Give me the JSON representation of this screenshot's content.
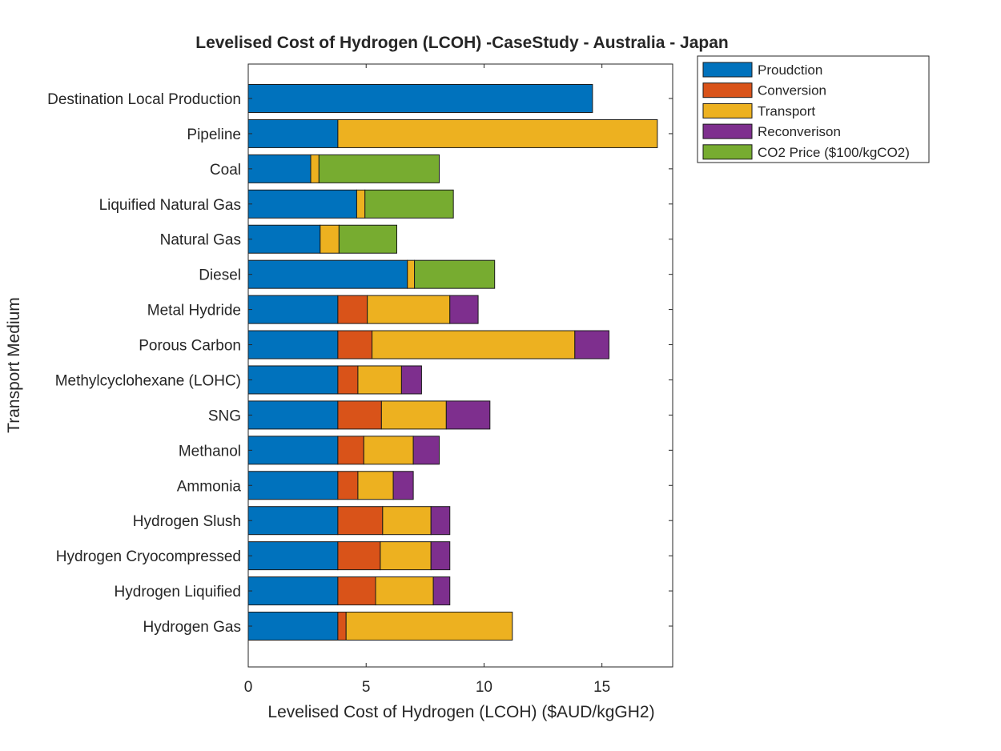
{
  "chart_data": {
    "type": "bar",
    "orientation": "horizontal",
    "stacked": true,
    "title": "Levelised Cost of Hydrogen (LCOH) -CaseStudy - Australia - Japan",
    "xlabel": "Levelised Cost of Hydrogen (LCOH) ($AUD/kgGH2)",
    "ylabel": "Transport Medium",
    "xlim": [
      0,
      18
    ],
    "xticks": [
      "0",
      "5",
      "10",
      "15"
    ],
    "xtick_values": [
      0,
      5,
      10,
      15
    ],
    "grid": false,
    "legend_position": "outside-top-right",
    "categories": [
      "Destination Local Production",
      "Pipeline",
      "Coal",
      "Liquified Natural Gas",
      "Natural Gas",
      "Diesel",
      "Metal Hydride",
      "Porous Carbon",
      "Methylcyclohexane (LOHC)",
      "SNG",
      "Methanol",
      "Ammonia",
      "Hydrogen Slush",
      "Hydrogen Cryocompressed",
      "Hydrogen Liquified",
      "Hydrogen Gas"
    ],
    "series": [
      {
        "name": "Proudction",
        "color": "#0072BD",
        "values": [
          14.6,
          3.8,
          2.65,
          4.6,
          3.05,
          6.75,
          3.8,
          3.8,
          3.8,
          3.8,
          3.8,
          3.8,
          3.8,
          3.8,
          3.8,
          3.8
        ]
      },
      {
        "name": "Conversion",
        "color": "#D95319",
        "values": [
          0,
          0,
          0,
          0,
          0,
          0,
          1.25,
          1.45,
          0.85,
          1.85,
          1.1,
          0.85,
          1.9,
          1.8,
          1.6,
          0.35
        ]
      },
      {
        "name": "Transport",
        "color": "#EDB120",
        "values": [
          0,
          13.55,
          0.35,
          0.35,
          0.8,
          0.3,
          3.5,
          8.6,
          1.85,
          2.75,
          2.1,
          1.5,
          2.05,
          2.15,
          2.45,
          7.05
        ]
      },
      {
        "name": "Reconverison",
        "color": "#7E2F8E",
        "values": [
          0,
          0,
          0,
          0,
          0,
          0,
          1.2,
          1.45,
          0.85,
          1.85,
          1.1,
          0.85,
          0.8,
          0.8,
          0.7,
          0
        ]
      },
      {
        "name": "CO2 Price ($100/kgCO2)",
        "color": "#77AC30",
        "values": [
          0,
          0,
          5.1,
          3.75,
          2.45,
          3.4,
          0,
          0,
          0,
          0,
          0,
          0,
          0,
          0,
          0,
          0
        ]
      }
    ]
  }
}
